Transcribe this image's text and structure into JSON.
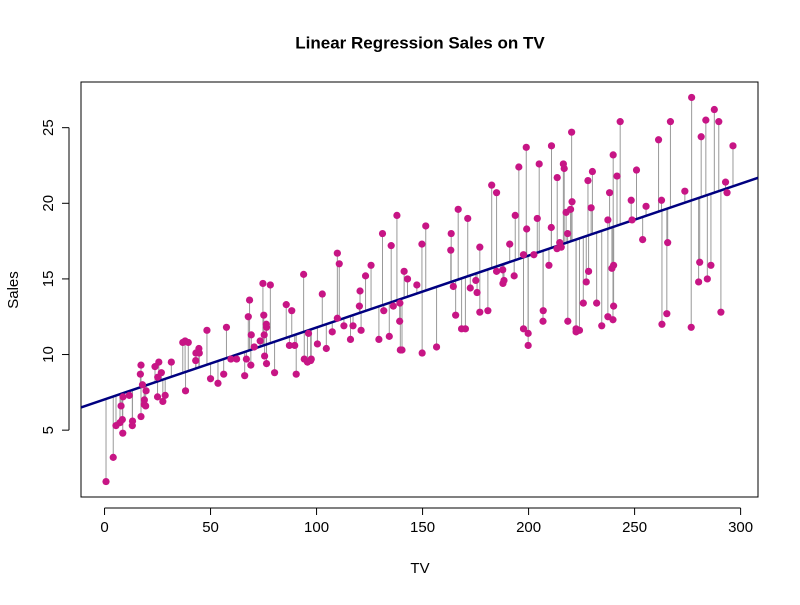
{
  "chart_data": {
    "type": "scatter",
    "title": "Linear Regression Sales on TV",
    "x_label": "TV",
    "y_label": "Sales",
    "x": [
      230.1,
      44.5,
      17.2,
      151.5,
      180.8,
      8.7,
      57.5,
      120.2,
      8.6,
      199.8,
      66.1,
      214.7,
      23.8,
      97.5,
      204.1,
      195.4,
      67.8,
      281.4,
      69.2,
      147.3,
      218.4,
      237.4,
      13.2,
      228.3,
      62.3,
      262.9,
      142.9,
      240.1,
      248.8,
      70.6,
      292.9,
      112.9,
      97.2,
      265.6,
      95.7,
      290.7,
      266.9,
      74.7,
      43.1,
      228,
      202.5,
      177,
      293.6,
      206.9,
      25.1,
      175.1,
      89.7,
      239.9,
      227.2,
      66.9,
      199.8,
      100.4,
      216.4,
      182.6,
      262.7,
      198.9,
      7.3,
      136.2,
      210.8,
      210.7,
      53.5,
      261.3,
      239.3,
      102.7,
      131.1,
      69,
      31.5,
      139.3,
      237.4,
      216.8,
      199.1,
      109.8,
      26.8,
      129.4,
      213.4,
      16.9,
      27.5,
      120.5,
      5.4,
      116,
      76.4,
      239.8,
      75.3,
      68.4,
      213.5,
      193.2,
      76.3,
      110.7,
      88.3,
      109.8,
      134.3,
      28.6,
      217.7,
      250.9,
      107.4,
      163.3,
      197.6,
      184.9,
      289.7,
      135.2,
      222.4,
      296.4,
      280.2,
      187.9,
      238.2,
      137.9,
      25,
      90.4,
      13.1,
      255.4,
      225.8,
      241.7,
      175.7,
      209.6,
      78.2,
      75.1,
      139.2,
      76.4,
      125.7,
      19.4,
      141.3,
      18.8,
      224,
      123.1,
      229.5,
      87.2,
      7.8,
      80.2,
      220.3,
      59.6,
      0.7,
      265.2,
      8.4,
      219.8,
      36.9,
      48.3,
      25.6,
      273.7,
      43,
      184.9,
      73.4,
      193.7,
      220.5,
      104.6,
      96.2,
      140.3,
      240.1,
      243.2,
      38,
      44.7,
      280.7,
      121,
      197.6,
      171.3,
      187.8,
      4.1,
      93.9,
      149.8,
      11.7,
      131.7,
      172.5,
      85.7,
      188.4,
      163.5,
      117.2,
      234.5,
      17.9,
      206.8,
      215.4,
      284.3,
      50,
      164.5,
      19.6,
      168.4,
      222.4,
      276.9,
      248.4,
      170.2,
      276.7,
      165.6,
      156.6,
      218.5,
      56.2,
      287.6,
      253.8,
      205,
      139.5,
      191.1,
      286,
      18.7,
      39.5,
      75.5,
      17.2,
      166.8,
      149.7,
      38.2,
      94.2,
      177,
      283.6,
      232.1
    ],
    "values": [
      22.1,
      10.4,
      9.3,
      18.5,
      12.9,
      7.2,
      11.8,
      13.2,
      4.8,
      10.6,
      8.6,
      17.4,
      9.2,
      9.7,
      19,
      22.4,
      12.5,
      24.4,
      11.3,
      14.6,
      18,
      12.5,
      5.6,
      15.5,
      9.7,
      12,
      15,
      15.9,
      18.9,
      10.5,
      21.4,
      11.9,
      9.6,
      17.4,
      9.5,
      12.8,
      25.4,
      14.7,
      10.1,
      21.5,
      16.6,
      17.1,
      20.7,
      12.9,
      8.5,
      14.9,
      10.6,
      23.2,
      14.8,
      9.7,
      11.4,
      10.7,
      22.6,
      21.2,
      20.2,
      23.7,
      5.5,
      13.2,
      23.8,
      18.4,
      8.1,
      24.2,
      15.7,
      14,
      18,
      9.3,
      9.5,
      13.4,
      18.9,
      22.3,
      18.3,
      12.4,
      8.8,
      11,
      17,
      8.7,
      6.9,
      14.2,
      5.3,
      11,
      11.8,
      12.3,
      11.3,
      13.6,
      21.7,
      15.2,
      12,
      16,
      12.9,
      16.7,
      11.2,
      7.3,
      19.4,
      22.2,
      11.5,
      16.9,
      11.7,
      15.5,
      25.4,
      17.2,
      11.7,
      23.8,
      14.8,
      14.7,
      20.7,
      19.2,
      7.2,
      8.7,
      5.3,
      19.8,
      13.4,
      21.8,
      14.1,
      15.9,
      14.6,
      12.6,
      12.2,
      9.4,
      15.9,
      6.6,
      15.5,
      7,
      11.6,
      15.2,
      19.7,
      10.6,
      6.6,
      8.8,
      24.7,
      9.7,
      1.6,
      12.7,
      5.7,
      19.6,
      10.8,
      11.6,
      9.5,
      20.8,
      9.6,
      20.7,
      10.9,
      19.2,
      20.1,
      10.4,
      11.4,
      10.3,
      13.2,
      25.4,
      10.9,
      10.1,
      16.1,
      11.6,
      16.6,
      19,
      15.6,
      3.2,
      15.3,
      10.1,
      7.3,
      12.9,
      14.4,
      13.3,
      14.9,
      18,
      11.9,
      11.9,
      8,
      12.2,
      17.1,
      15,
      8.4,
      14.5,
      7.6,
      11.7,
      11.5,
      27,
      20.2,
      11.7,
      11.8,
      12.6,
      10.5,
      12.2,
      8.7,
      26.2,
      17.6,
      22.6,
      10.3,
      17.3,
      15.9,
      6.7,
      10.8,
      9.9,
      5.9,
      19.6,
      17.3,
      7.6,
      9.7,
      12.8,
      25.5,
      13.4
    ],
    "color": "#c71585",
    "residual_color": "#999999",
    "regression": {
      "intercept": 7.0326,
      "slope": 0.04754,
      "color": "#000080"
    },
    "xlim": [
      -11.1,
      308.2
    ],
    "ylim": [
      0.58,
      28.02
    ],
    "xticks": [
      0,
      50,
      100,
      150,
      200,
      250,
      300
    ],
    "yticks": [
      5,
      10,
      15,
      20,
      25
    ]
  }
}
